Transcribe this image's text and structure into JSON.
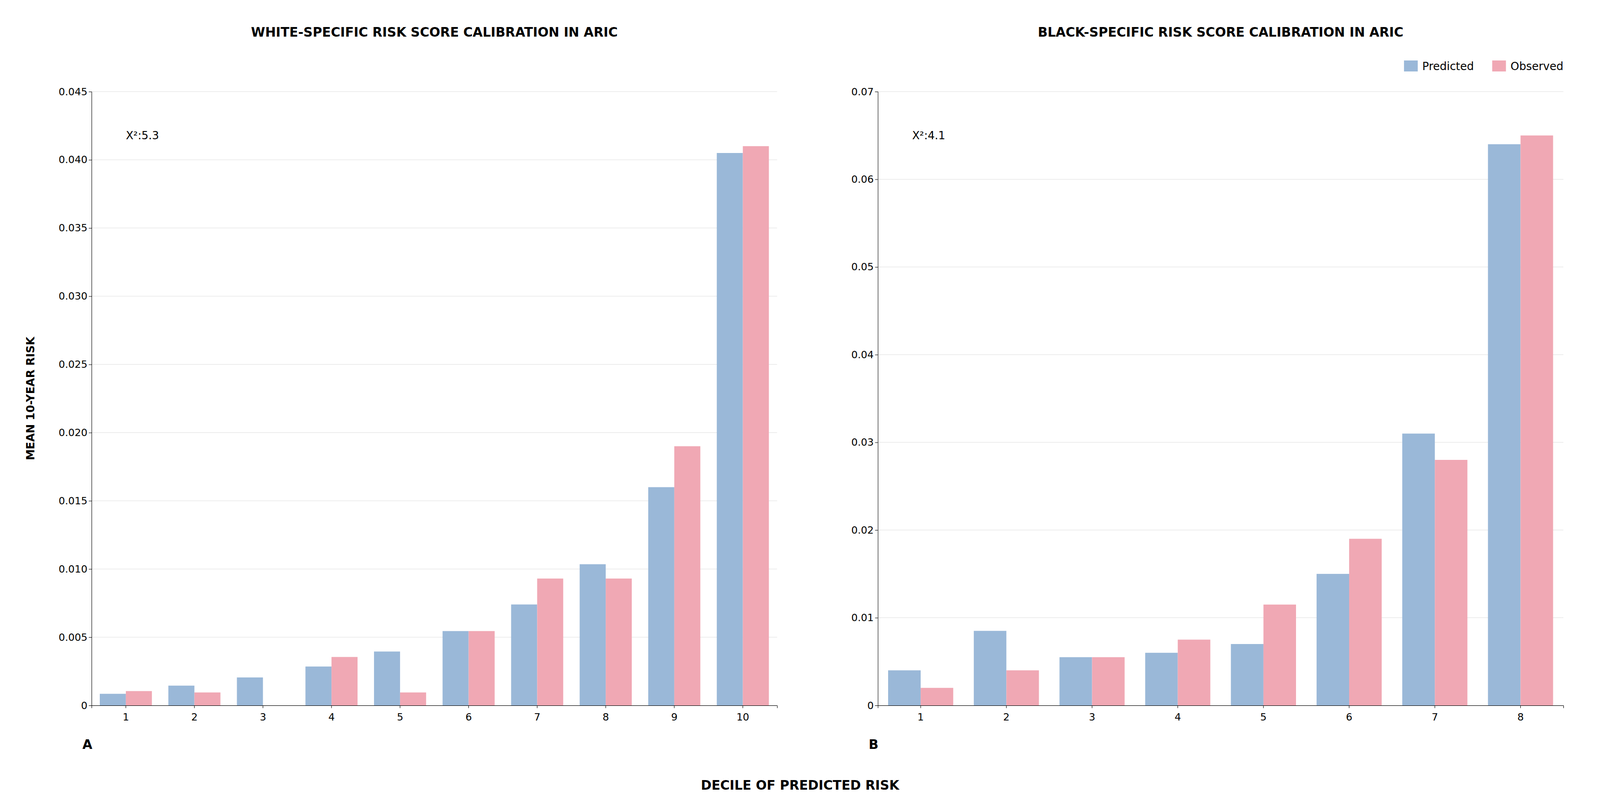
{
  "chart_data": [
    {
      "type": "bar",
      "title": "WHITE-SPECIFIC RISK SCORE CALIBRATION IN ARIC",
      "annotations": [
        "X²:5.3",
        "A"
      ],
      "xlabel": "DECILE OF PREDICTED RISK",
      "ylabel": "MEAN 10-YEAR RISK",
      "categories": [
        "1",
        "2",
        "3",
        "4",
        "5",
        "6",
        "7",
        "8",
        "9",
        "10"
      ],
      "series": [
        {
          "name": "Predicted",
          "color": "#9ab8d8",
          "values": [
            0.00085,
            0.00145,
            0.00205,
            0.00285,
            0.00395,
            0.00545,
            0.0074,
            0.01035,
            0.016,
            0.0405
          ]
        },
        {
          "name": "Observed",
          "color": "#f0a8b4",
          "values": [
            0.00105,
            0.00095,
            0.0,
            0.00355,
            0.00095,
            0.00545,
            0.0093,
            0.0093,
            0.019,
            0.041
          ]
        }
      ],
      "ylim": [
        0,
        0.045
      ],
      "yticks": [
        0,
        0.005,
        {
          "value": 0.01,
          "label": "0.010"
        },
        0.015,
        {
          "value": 0.02,
          "label": "0.020"
        },
        0.025,
        {
          "value": 0.03,
          "label": "0.030"
        },
        0.035,
        {
          "value": 0.04,
          "label": "0.040"
        },
        0.045
      ],
      "grid": true
    },
    {
      "type": "bar",
      "title": "BLACK-SPECIFIC RISK SCORE CALIBRATION IN ARIC",
      "annotations": [
        "X²:4.1",
        "B"
      ],
      "categories": [
        "1",
        "2",
        "3",
        "4",
        "5",
        "6",
        "7",
        "8"
      ],
      "series": [
        {
          "name": "Predicted",
          "color": "#9ab8d8",
          "values": [
            0.004,
            0.0085,
            0.0055,
            0.006,
            0.007,
            0.015,
            0.031,
            0.064
          ]
        },
        {
          "name": "Observed",
          "color": "#f0a8b4",
          "values": [
            0.002,
            0.004,
            0.0055,
            0.0075,
            0.0115,
            0.019,
            0.028,
            0.065
          ]
        }
      ],
      "ylim": [
        0,
        0.07
      ],
      "yticks": [
        0,
        0.01,
        0.02,
        0.03,
        0.04,
        0.05,
        0.06,
        0.07
      ],
      "grid": true,
      "legend": "upper right"
    }
  ]
}
